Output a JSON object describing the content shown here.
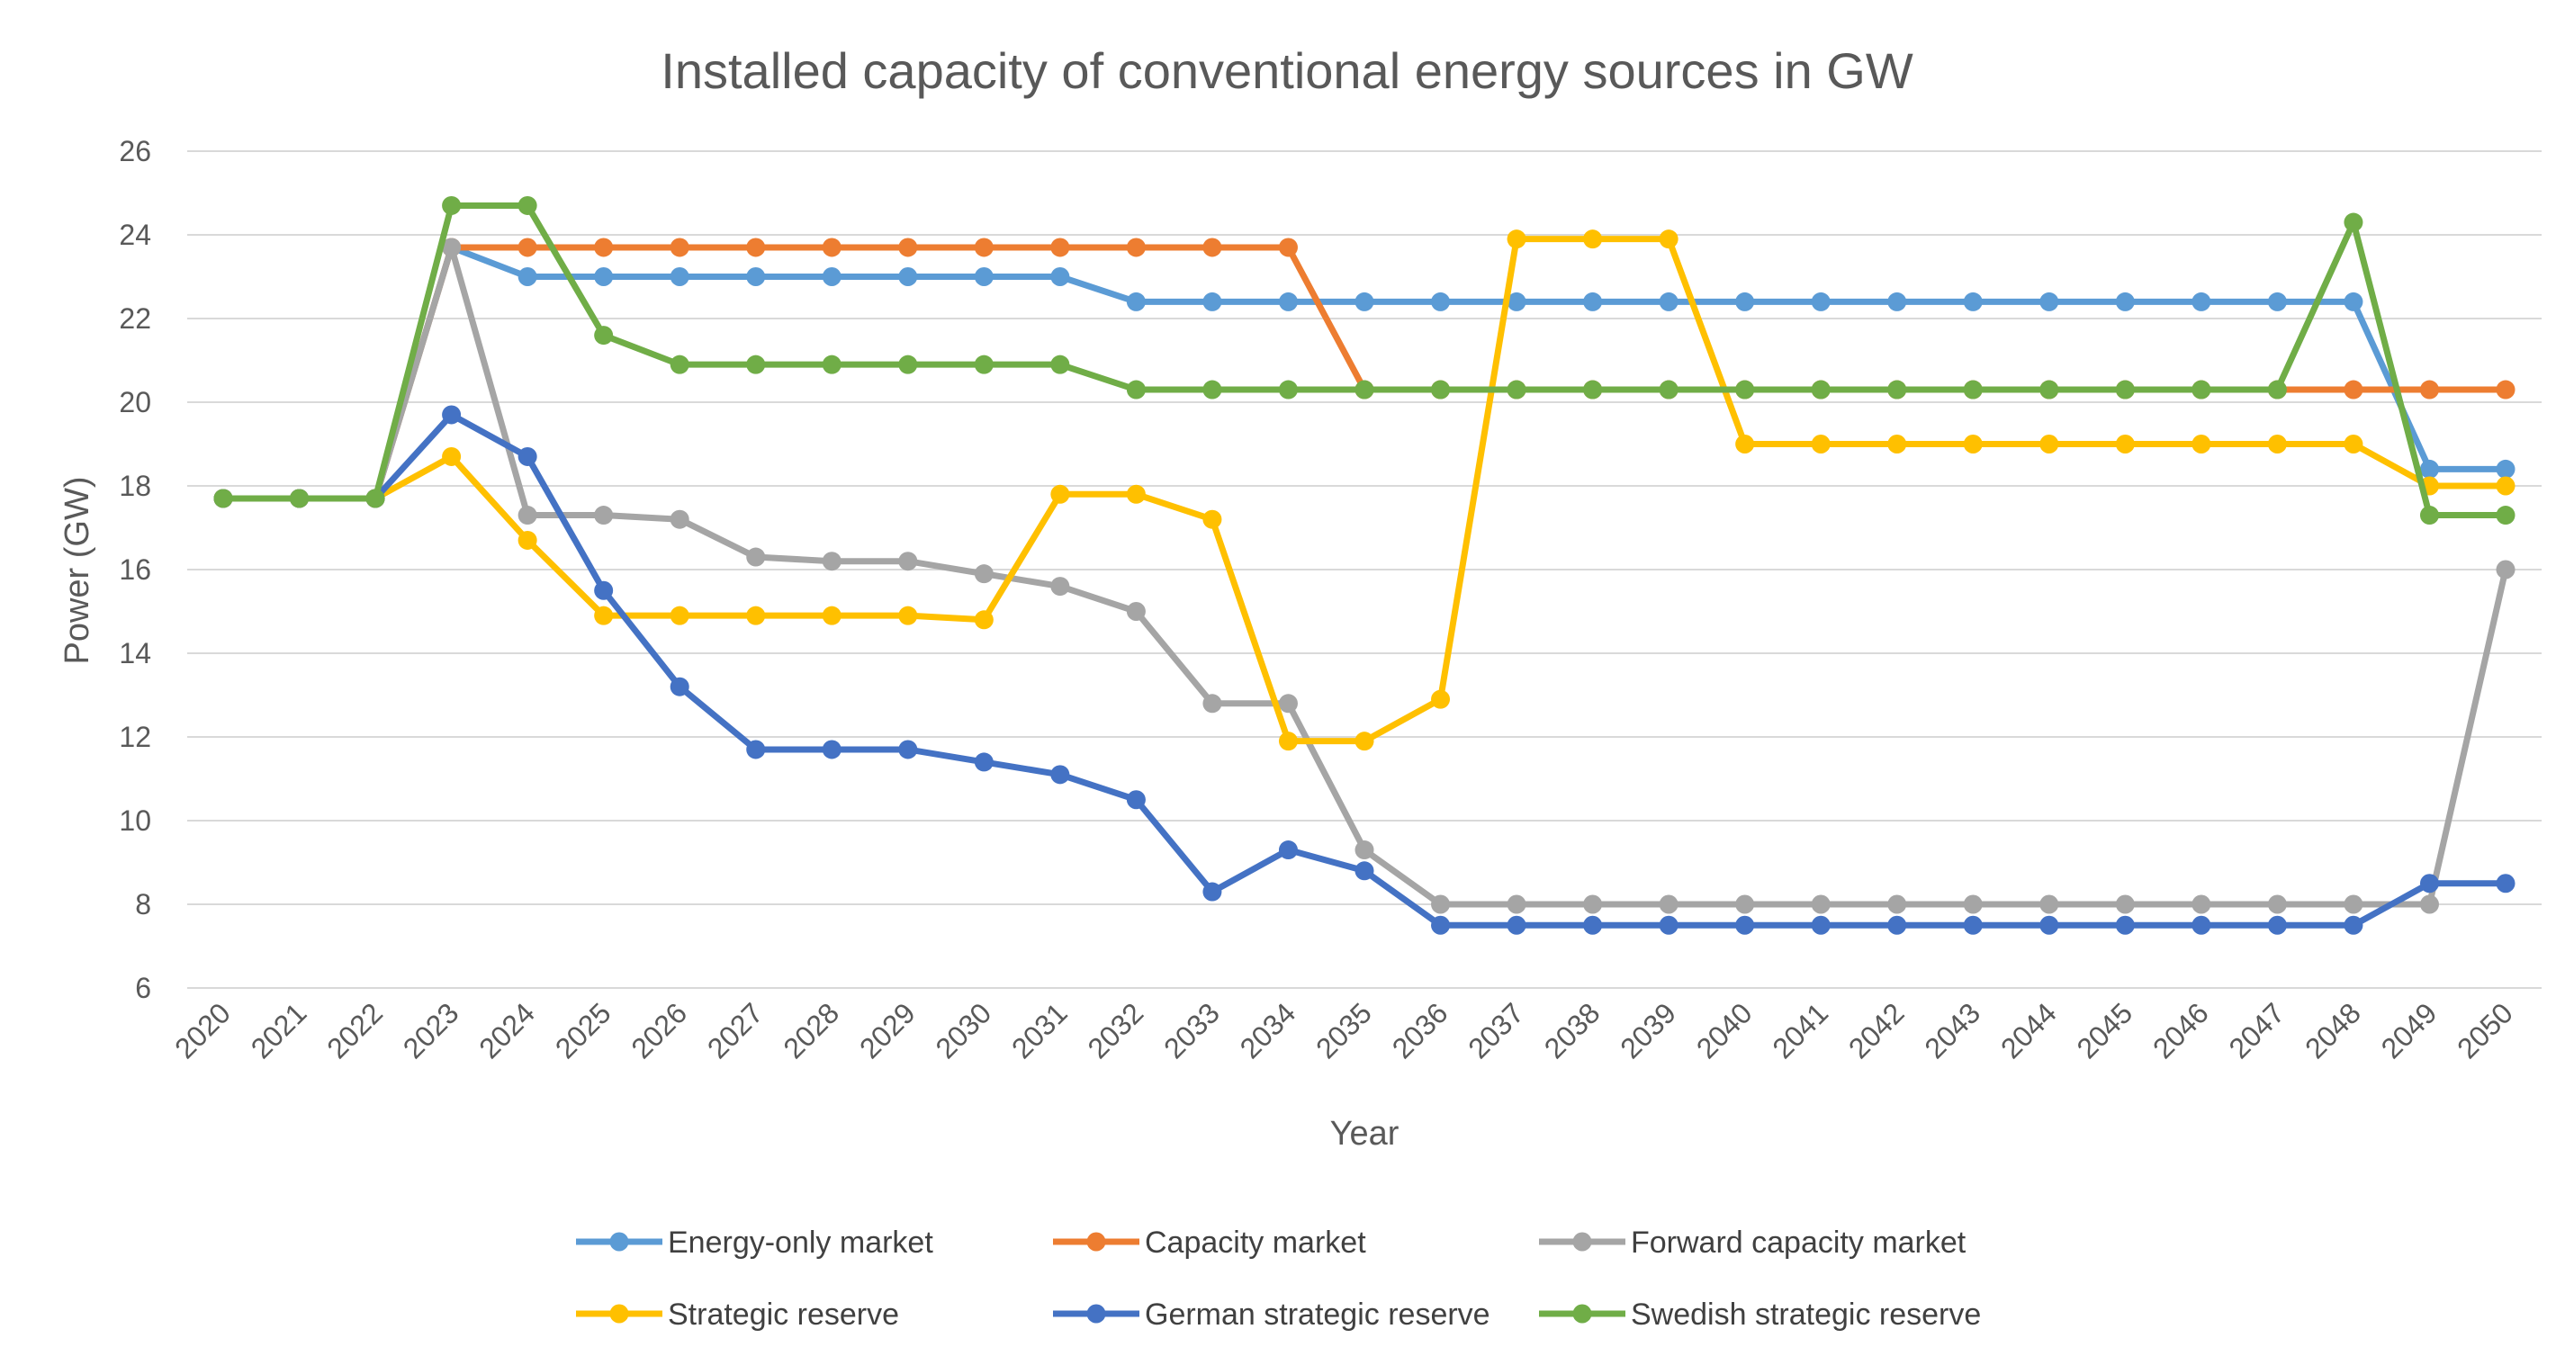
{
  "chart_data": {
    "type": "line",
    "title": "Installed capacity of conventional energy sources in GW",
    "xlabel": "Year",
    "ylabel": "Power (GW)",
    "ylim": [
      6,
      26
    ],
    "yticks": [
      6,
      8,
      10,
      12,
      14,
      16,
      18,
      20,
      22,
      24,
      26
    ],
    "grid": "horizontal",
    "legend_position": "bottom",
    "x": [
      "2020",
      "2021",
      "2022",
      "2023",
      "2024",
      "2025",
      "2026",
      "2027",
      "2028",
      "2029",
      "2030",
      "2031",
      "2032",
      "2033",
      "2034",
      "2035",
      "2036",
      "2037",
      "2038",
      "2039",
      "2040",
      "2041",
      "2042",
      "2043",
      "2044",
      "2045",
      "2046",
      "2047",
      "2048",
      "2049",
      "2050"
    ],
    "series": [
      {
        "name": "Energy-only market",
        "color": "#5B9BD5",
        "values": [
          17.7,
          17.7,
          17.7,
          23.7,
          23.0,
          23.0,
          23.0,
          23.0,
          23.0,
          23.0,
          23.0,
          23.0,
          22.4,
          22.4,
          22.4,
          22.4,
          22.4,
          22.4,
          22.4,
          22.4,
          22.4,
          22.4,
          22.4,
          22.4,
          22.4,
          22.4,
          22.4,
          22.4,
          22.4,
          18.4,
          18.4
        ]
      },
      {
        "name": "Capacity market",
        "color": "#ED7D31",
        "values": [
          17.7,
          17.7,
          17.7,
          23.7,
          23.7,
          23.7,
          23.7,
          23.7,
          23.7,
          23.7,
          23.7,
          23.7,
          23.7,
          23.7,
          23.7,
          20.3,
          20.3,
          20.3,
          20.3,
          20.3,
          20.3,
          20.3,
          20.3,
          20.3,
          20.3,
          20.3,
          20.3,
          20.3,
          20.3,
          20.3,
          20.3
        ]
      },
      {
        "name": "Forward capacity market",
        "color": "#A5A5A5",
        "values": [
          17.7,
          17.7,
          17.7,
          23.7,
          17.3,
          17.3,
          17.2,
          16.3,
          16.2,
          16.2,
          15.9,
          15.6,
          15.0,
          12.8,
          12.8,
          9.3,
          8.0,
          8.0,
          8.0,
          8.0,
          8.0,
          8.0,
          8.0,
          8.0,
          8.0,
          8.0,
          8.0,
          8.0,
          8.0,
          8.0,
          16.0
        ]
      },
      {
        "name": "Strategic reserve",
        "color": "#FFC000",
        "values": [
          17.7,
          17.7,
          17.7,
          18.7,
          16.7,
          14.9,
          14.9,
          14.9,
          14.9,
          14.9,
          14.8,
          17.8,
          17.8,
          17.2,
          11.9,
          11.9,
          12.9,
          23.9,
          23.9,
          23.9,
          19.0,
          19.0,
          19.0,
          19.0,
          19.0,
          19.0,
          19.0,
          19.0,
          19.0,
          18.0,
          18.0
        ]
      },
      {
        "name": "German strategic reserve",
        "color": "#4472C4",
        "values": [
          17.7,
          17.7,
          17.7,
          19.7,
          18.7,
          15.5,
          13.2,
          11.7,
          11.7,
          11.7,
          11.4,
          11.1,
          10.5,
          8.3,
          9.3,
          8.8,
          7.5,
          7.5,
          7.5,
          7.5,
          7.5,
          7.5,
          7.5,
          7.5,
          7.5,
          7.5,
          7.5,
          7.5,
          7.5,
          8.5,
          8.5
        ]
      },
      {
        "name": "Swedish strategic reserve",
        "color": "#70AD47",
        "values": [
          17.7,
          17.7,
          17.7,
          24.7,
          24.7,
          21.6,
          20.9,
          20.9,
          20.9,
          20.9,
          20.9,
          20.9,
          20.3,
          20.3,
          20.3,
          20.3,
          20.3,
          20.3,
          20.3,
          20.3,
          20.3,
          20.3,
          20.3,
          20.3,
          20.3,
          20.3,
          20.3,
          20.3,
          24.3,
          17.3,
          17.3
        ]
      }
    ]
  }
}
